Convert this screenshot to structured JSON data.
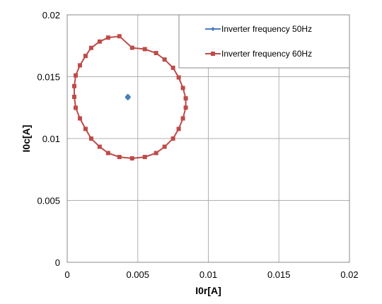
{
  "chart_data": {
    "type": "scatter",
    "xlabel": "I0r[A]",
    "ylabel": "I0c[A]",
    "xlim": [
      0,
      0.02
    ],
    "ylim": [
      0,
      0.02
    ],
    "x_ticks": [
      0,
      0.005,
      0.01,
      0.015,
      0.02
    ],
    "y_ticks": [
      0,
      0.005,
      0.01,
      0.015,
      0.02
    ],
    "x_tick_labels": [
      "0",
      "0.005",
      "0.01",
      "0.015",
      "0.02"
    ],
    "y_tick_labels": [
      "0",
      "0.005",
      "0.01",
      "0.015",
      "0.02"
    ],
    "grid": true,
    "legend_position": "top-right",
    "series": [
      {
        "name": "Inverter frequency 50Hz",
        "color": "#4a7ebb",
        "marker": "diamond",
        "x": [
          0.0043,
          0.0043,
          0.0043,
          0.0043
        ],
        "y": [
          0.0134,
          0.0133,
          0.01335,
          0.01338
        ]
      },
      {
        "name": "Inverter frequency 60Hz",
        "color": "#be4b48",
        "marker": "square",
        "closed": true,
        "x": [
          0.0046,
          0.0055,
          0.0063,
          0.0069,
          0.0075,
          0.0079,
          0.0082,
          0.0084,
          0.0084,
          0.0082,
          0.0079,
          0.0075,
          0.0069,
          0.0063,
          0.0055,
          0.0046,
          0.0037,
          0.0029,
          0.0023,
          0.0017,
          0.0013,
          0.0009,
          0.0006,
          0.0005,
          0.0005,
          0.0006,
          0.0009,
          0.0013,
          0.0017,
          0.0023,
          0.0029,
          0.0037
        ],
        "y": [
          0.01734,
          0.01723,
          0.01691,
          0.01639,
          0.01572,
          0.01494,
          0.01409,
          0.01325,
          0.0125,
          0.01163,
          0.01078,
          0.01,
          0.00934,
          0.00883,
          0.00851,
          0.0084,
          0.00851,
          0.00883,
          0.00934,
          0.01,
          0.01078,
          0.01163,
          0.01249,
          0.01337,
          0.01424,
          0.0151,
          0.01592,
          0.01668,
          0.01733,
          0.01784,
          0.01816,
          0.01827
        ]
      }
    ]
  }
}
